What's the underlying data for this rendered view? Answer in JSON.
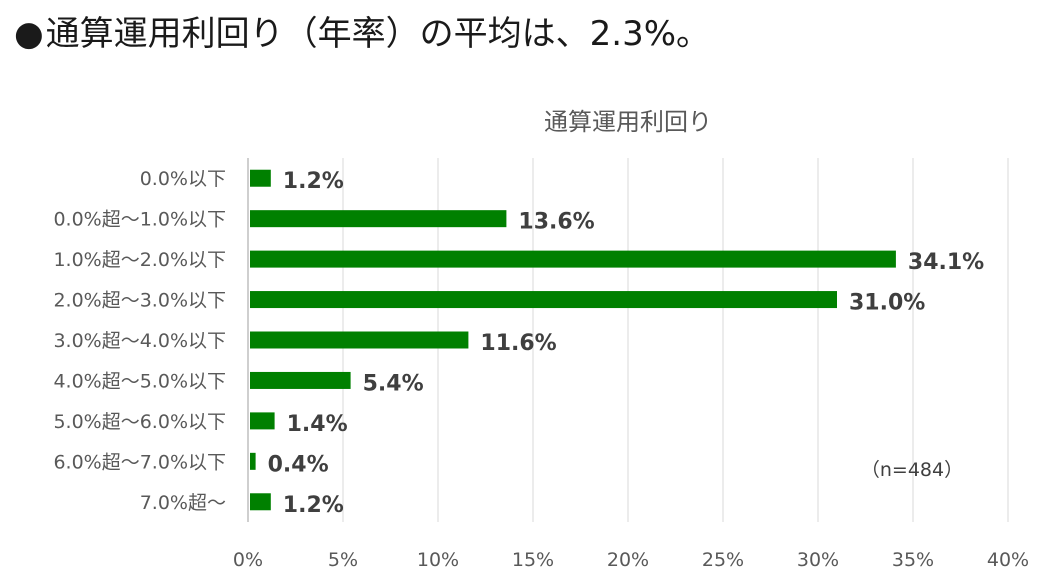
{
  "headline": {
    "bullet": "●",
    "text": "通算運用利回り（年率）の平均は、2.3%。"
  },
  "chart_data": {
    "type": "bar",
    "orientation": "horizontal",
    "title": "通算運用利回り",
    "categories": [
      "0.0%以下",
      "0.0%超～1.0%以下",
      "1.0%超～2.0%以下",
      "2.0%超～3.0%以下",
      "3.0%超～4.0%以下",
      "4.0%超～5.0%以下",
      "5.0%超～6.0%以下",
      "6.0%超～7.0%以下",
      "7.0%超～"
    ],
    "values": [
      1.2,
      13.6,
      34.1,
      31.0,
      11.6,
      5.4,
      1.4,
      0.4,
      1.2
    ],
    "value_labels": [
      "1.2%",
      "13.6%",
      "34.1%",
      "31.0%",
      "11.6%",
      "5.4%",
      "1.4%",
      "0.4%",
      "1.2%"
    ],
    "xlim": [
      0,
      40
    ],
    "x_ticks": [
      "0%",
      "5%",
      "10%",
      "15%",
      "20%",
      "25%",
      "30%",
      "35%",
      "40%"
    ],
    "grid": true,
    "bar_color": "#008000",
    "note": "（n=484）"
  }
}
